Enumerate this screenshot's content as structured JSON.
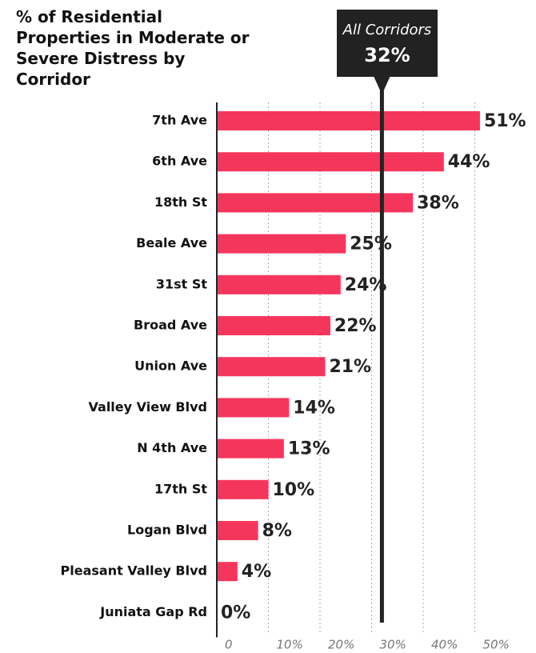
{
  "chart_data": {
    "type": "bar",
    "orientation": "horizontal",
    "title": "% of Residential Properties in Moderate or Severe Distress by Corridor",
    "categories": [
      "7th Ave",
      "6th Ave",
      "18th St",
      "Beale Ave",
      "31st St",
      "Broad Ave",
      "Union Ave",
      "Valley View Blvd",
      "N 4th Ave",
      "17th St",
      "Logan Blvd",
      "Pleasant Valley Blvd",
      "Juniata Gap Rd"
    ],
    "values": [
      51,
      44,
      38,
      25,
      24,
      22,
      21,
      14,
      13,
      10,
      8,
      4,
      0
    ],
    "value_labels": [
      "51%",
      "44%",
      "38%",
      "25%",
      "24%",
      "22%",
      "21%",
      "14%",
      "13%",
      "10%",
      "8%",
      "4%",
      "0%"
    ],
    "color": "#f5365c",
    "xlim": [
      0,
      50
    ],
    "xticks": [
      0,
      {
        "value": 10,
        "label": "10%"
      },
      {
        "value": 20,
        "label": "20%"
      },
      {
        "value": 30,
        "label": "30%"
      },
      {
        "value": 40,
        "label": "40%"
      },
      {
        "value": 50,
        "label": "50%"
      }
    ],
    "grid": true,
    "reference": {
      "label": "All Corridors",
      "value": 32,
      "value_label": "32%"
    }
  }
}
